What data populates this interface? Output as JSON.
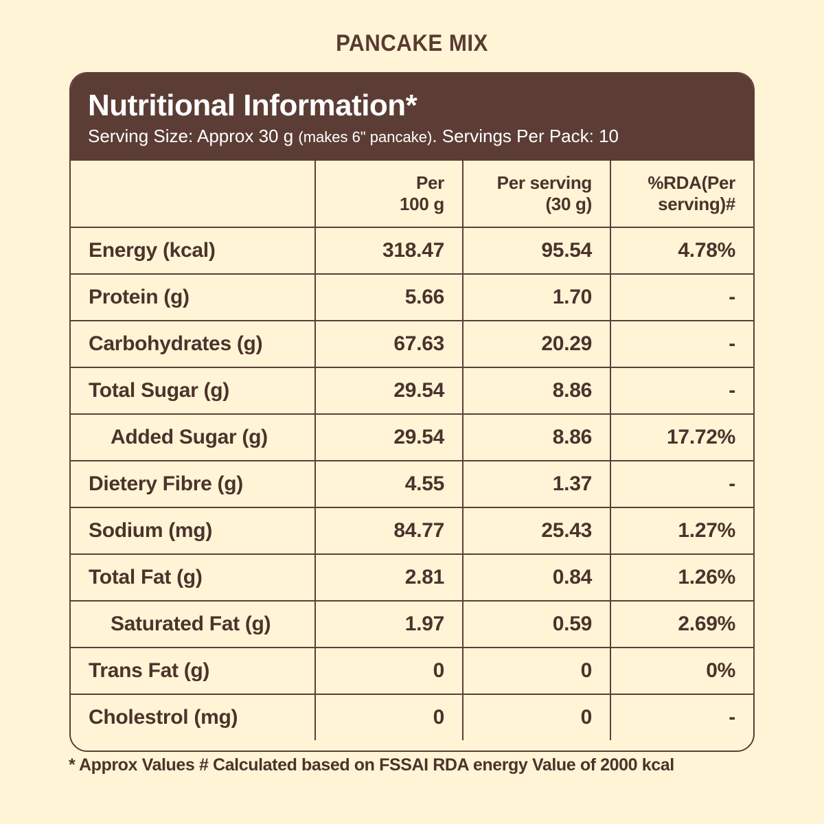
{
  "product_title": "PANCAKE MIX",
  "panel": {
    "heading": "Nutritional Information*",
    "serving_prefix": "Serving Size: Approx 30 g ",
    "serving_note": "(makes 6\" pancake)",
    "serving_suffix": ". Servings Per Pack: 10"
  },
  "columns": [
    "",
    "Per 100 g",
    "Per serving (30 g)",
    "%RDA(Per serving)#"
  ],
  "column_lines": [
    [
      "",
      ""
    ],
    [
      "Per",
      "100 g"
    ],
    [
      "Per serving",
      "(30 g)"
    ],
    [
      "%RDA(Per",
      "serving)#"
    ]
  ],
  "rows": [
    {
      "label": "Energy (kcal)",
      "per100": "318.47",
      "perServing": "95.54",
      "rda": "4.78%",
      "indent": false
    },
    {
      "label": "Protein (g)",
      "per100": "5.66",
      "perServing": "1.70",
      "rda": "-",
      "indent": false
    },
    {
      "label": "Carbohydrates (g)",
      "per100": "67.63",
      "perServing": "20.29",
      "rda": "-",
      "indent": false
    },
    {
      "label": "Total Sugar (g)",
      "per100": "29.54",
      "perServing": "8.86",
      "rda": "-",
      "indent": false
    },
    {
      "label": "Added Sugar (g)",
      "per100": "29.54",
      "perServing": "8.86",
      "rda": "17.72%",
      "indent": true
    },
    {
      "label": "Dietery Fibre (g)",
      "per100": "4.55",
      "perServing": "1.37",
      "rda": "-",
      "indent": false
    },
    {
      "label": "Sodium (mg)",
      "per100": "84.77",
      "perServing": "25.43",
      "rda": "1.27%",
      "indent": false
    },
    {
      "label": "Total Fat (g)",
      "per100": "2.81",
      "perServing": "0.84",
      "rda": "1.26%",
      "indent": false
    },
    {
      "label": "Saturated Fat (g)",
      "per100": "1.97",
      "perServing": "0.59",
      "rda": "2.69%",
      "indent": true
    },
    {
      "label": "Trans Fat (g)",
      "per100": "0",
      "perServing": "0",
      "rda": "0%",
      "indent": false
    },
    {
      "label": "Cholestrol (mg)",
      "per100": "0",
      "perServing": "0",
      "rda": "-",
      "indent": false
    }
  ],
  "footnote": "* Approx Values # Calculated based on FSSAI RDA energy Value of 2000 kcal",
  "colors": {
    "background": "#fff4d6",
    "brand_brown": "#5c3d35",
    "text": "#4b332c"
  }
}
